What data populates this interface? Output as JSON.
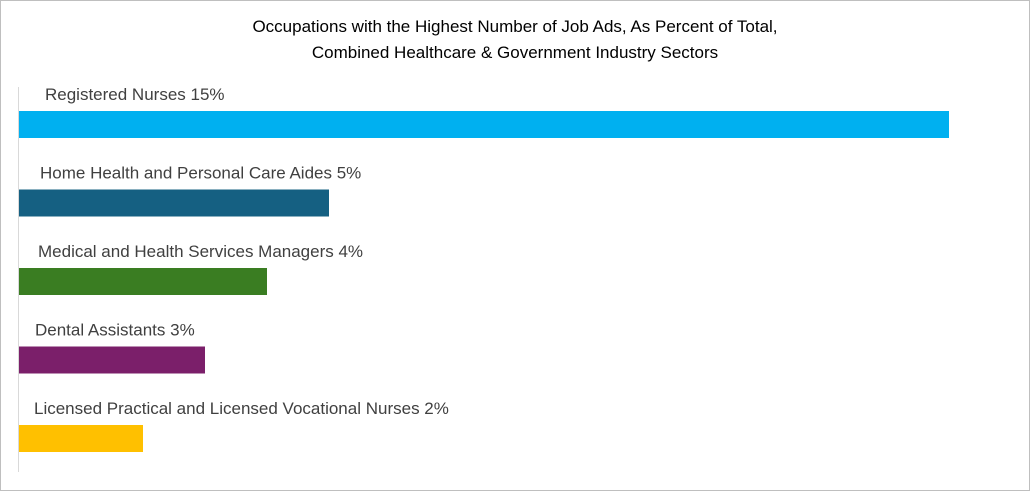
{
  "chart_data": {
    "type": "bar",
    "orientation": "horizontal",
    "title": [
      "Occupations with the Highest Number of Job Ads, As Percent of Total,",
      "Combined Healthcare & Government Industry Sectors"
    ],
    "xlabel": "",
    "ylabel": "",
    "xlim": [
      0,
      15
    ],
    "grid": false,
    "legend": "none",
    "categories": [
      "Registered Nurses",
      "Home Health and Personal Care Aides",
      "Medical and Health Services Managers",
      "Dental Assistants",
      "Licensed Practical and Licensed Vocational Nurses"
    ],
    "values": [
      15,
      5,
      4,
      3,
      2
    ],
    "data_labels": [
      "Registered Nurses 15%",
      "Home Health and Personal Care Aides 5%",
      "Medical and Health Services Managers 4%",
      "Dental Assistants 3%",
      "Licensed Practical and Licensed Vocational Nurses 2%"
    ],
    "colors": [
      "#00b0f0",
      "#156082",
      "#3a7d22",
      "#7b1f6a",
      "#ffc000"
    ]
  }
}
